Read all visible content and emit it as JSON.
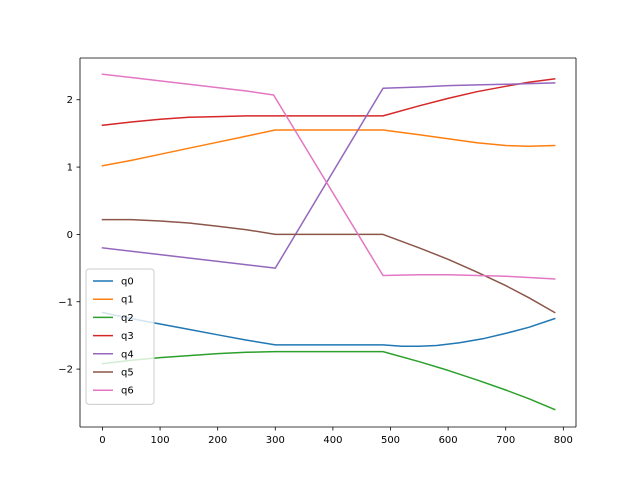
{
  "chart_data": {
    "type": "line",
    "title": "",
    "xlabel": "",
    "ylabel": "",
    "xlim": [
      -39,
      822
    ],
    "ylim": [
      -2.86,
      2.62
    ],
    "xticks": [
      0,
      100,
      200,
      300,
      400,
      500,
      600,
      700,
      800
    ],
    "xtick_labels": [
      "0",
      "100",
      "200",
      "300",
      "400",
      "500",
      "600",
      "700",
      "800"
    ],
    "yticks": [
      -2,
      -1,
      0,
      1,
      2
    ],
    "ytick_labels": [
      "−2",
      "−1",
      "0",
      "1",
      "2"
    ],
    "grid": false,
    "legend_position": "lower-left",
    "series": [
      {
        "name": "q0",
        "color": "#1f77b4",
        "x": [
          0,
          50,
          100,
          150,
          200,
          250,
          300,
          350,
          400,
          450,
          487,
          520,
          550,
          580,
          620,
          660,
          700,
          740,
          785
        ],
        "y": [
          -1.16,
          -1.25,
          -1.33,
          -1.41,
          -1.49,
          -1.57,
          -1.64,
          -1.64,
          -1.64,
          -1.64,
          -1.64,
          -1.66,
          -1.66,
          -1.65,
          -1.61,
          -1.55,
          -1.47,
          -1.38,
          -1.25
        ]
      },
      {
        "name": "q1",
        "color": "#ff7f0e",
        "x": [
          0,
          50,
          100,
          150,
          200,
          250,
          300,
          350,
          400,
          450,
          487,
          550,
          600,
          650,
          700,
          740,
          785
        ],
        "y": [
          1.02,
          1.1,
          1.19,
          1.28,
          1.37,
          1.46,
          1.55,
          1.55,
          1.55,
          1.55,
          1.55,
          1.48,
          1.42,
          1.36,
          1.32,
          1.31,
          1.32
        ]
      },
      {
        "name": "q2",
        "color": "#2ca02c",
        "x": [
          0,
          50,
          100,
          150,
          200,
          250,
          300,
          350,
          400,
          450,
          487,
          550,
          600,
          650,
          700,
          740,
          785
        ],
        "y": [
          -1.92,
          -1.87,
          -1.83,
          -1.8,
          -1.77,
          -1.75,
          -1.74,
          -1.74,
          -1.74,
          -1.74,
          -1.74,
          -1.89,
          -2.02,
          -2.16,
          -2.31,
          -2.44,
          -2.6
        ]
      },
      {
        "name": "q3",
        "color": "#d62728",
        "x": [
          0,
          50,
          100,
          150,
          200,
          250,
          300,
          350,
          400,
          450,
          487,
          550,
          600,
          650,
          700,
          740,
          785
        ],
        "y": [
          1.62,
          1.67,
          1.71,
          1.74,
          1.75,
          1.76,
          1.76,
          1.76,
          1.76,
          1.76,
          1.76,
          1.91,
          2.02,
          2.12,
          2.2,
          2.26,
          2.31
        ]
      },
      {
        "name": "q4",
        "color": "#9467bd",
        "x": [
          0,
          50,
          100,
          150,
          200,
          250,
          300,
          487,
          550,
          600,
          650,
          700,
          740,
          785
        ],
        "y": [
          -0.2,
          -0.25,
          -0.3,
          -0.35,
          -0.4,
          -0.45,
          -0.5,
          2.17,
          2.19,
          2.21,
          2.22,
          2.23,
          2.24,
          2.25
        ]
      },
      {
        "name": "q5",
        "color": "#8c564b",
        "x": [
          0,
          50,
          100,
          150,
          200,
          250,
          300,
          350,
          400,
          450,
          487,
          550,
          600,
          650,
          700,
          740,
          785
        ],
        "y": [
          0.22,
          0.22,
          0.2,
          0.17,
          0.12,
          0.07,
          0.0,
          0.0,
          0.0,
          0.0,
          0.0,
          -0.2,
          -0.37,
          -0.56,
          -0.76,
          -0.94,
          -1.16
        ]
      },
      {
        "name": "q6",
        "color": "#e377c2",
        "x": [
          0,
          50,
          100,
          150,
          200,
          250,
          297,
          487,
          550,
          600,
          650,
          700,
          740,
          785
        ],
        "y": [
          2.38,
          2.33,
          2.28,
          2.23,
          2.18,
          2.13,
          2.07,
          -0.61,
          -0.6,
          -0.6,
          -0.61,
          -0.62,
          -0.64,
          -0.66
        ]
      }
    ]
  }
}
